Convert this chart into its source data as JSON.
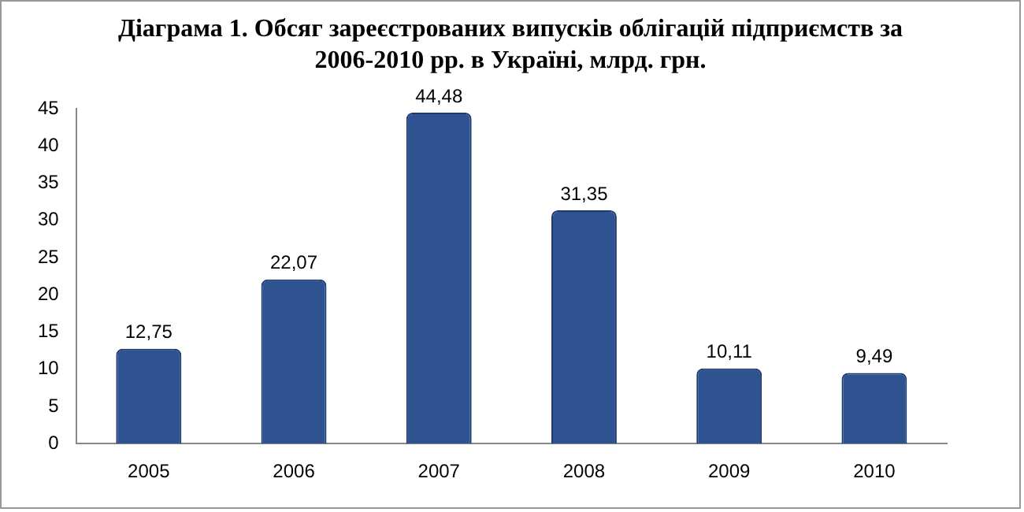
{
  "chart_data": {
    "type": "bar",
    "title": "Діаграма 1. Обсяг зареєстрованих випусків облігацій підприємств за 2006-2010 рр. в Україні, млрд. грн.",
    "categories": [
      "2005",
      "2006",
      "2007",
      "2008",
      "2009",
      "2010"
    ],
    "values": [
      12.75,
      22.07,
      44.48,
      31.35,
      10.11,
      9.49
    ],
    "value_labels": [
      "12,75",
      "22,07",
      "44,48",
      "31,35",
      "10,11",
      "9,49"
    ],
    "color": "#2f5290",
    "ylim": [
      0,
      45
    ],
    "yticks": [
      0,
      5,
      10,
      15,
      20,
      25,
      30,
      35,
      40,
      45
    ],
    "grid": false,
    "legend": false
  }
}
